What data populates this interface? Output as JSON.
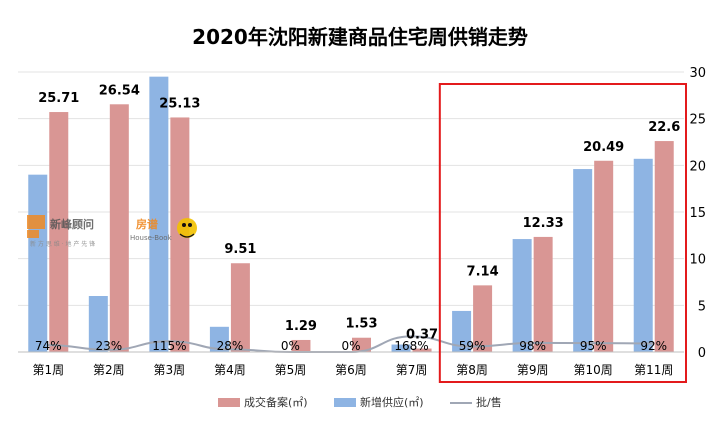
{
  "chart_data": {
    "type": "bar",
    "title": "2020年沈阳新建商品住宅周供销走势",
    "categories": [
      "第1周",
      "第2周",
      "第3周",
      "第4周",
      "第5周",
      "第6周",
      "第7周",
      "第8周",
      "第9周",
      "第10周",
      "第11周"
    ],
    "ylim": [
      0,
      30
    ],
    "yticks": [
      "0",
      "5",
      "10",
      "15",
      "20",
      "25",
      "30"
    ],
    "grid": true,
    "legend_position": "bottom",
    "series": [
      {
        "name": "新增供应(㎡)",
        "kind": "bar",
        "color": "#8eb4e3",
        "values": [
          19.0,
          6.0,
          29.5,
          2.7,
          0,
          0,
          0.8,
          4.4,
          12.1,
          19.6,
          20.7
        ]
      },
      {
        "name": "成交备案(㎡)",
        "kind": "bar",
        "color": "#d99694",
        "values": [
          25.71,
          26.54,
          25.13,
          9.51,
          1.29,
          1.53,
          0.37,
          7.14,
          12.33,
          20.49,
          22.6
        ],
        "labels": [
          "25.71",
          "26.54",
          "25.13",
          "9.51",
          "1.29",
          "1.53",
          "0.37",
          "7.14",
          "12.33",
          "20.49",
          "22.6"
        ]
      },
      {
        "name": "批/售",
        "kind": "line",
        "color": "#a0a7b5",
        "values": [
          0.74,
          0.23,
          1.15,
          0.28,
          0,
          0,
          1.68,
          0.59,
          0.98,
          0.95,
          0.92
        ],
        "labels": [
          "74%",
          "23%",
          "115%",
          "28%",
          "0%",
          "0%",
          "168%",
          "59%",
          "98%",
          "95%",
          "92%"
        ]
      }
    ],
    "highlight": {
      "from_category": "第8周",
      "to_category": "第11周",
      "color": "#e31a1c"
    }
  },
  "watermark": {
    "logo1_text": "新峰顾问",
    "logo1_sub": "新 方 思 维 · 地 产 先 锋",
    "logo2_text": "房谱",
    "logo2_sub": "House-Book"
  }
}
